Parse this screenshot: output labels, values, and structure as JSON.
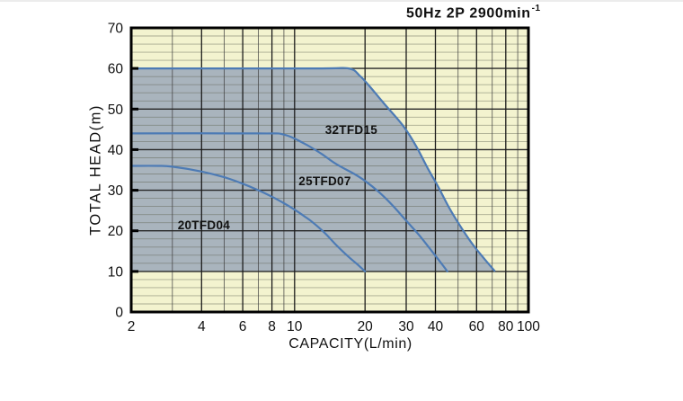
{
  "header": {
    "title_main": "50Hz 2P 2900min",
    "title_sup": "-1"
  },
  "chart_data": {
    "type": "line",
    "title": "50Hz 2P 2900min⁻¹",
    "xlabel": "CAPACITY(L/min)",
    "ylabel": "TOTAL HEAD(m)",
    "x_scale": "log",
    "xlim": [
      2,
      100
    ],
    "ylim": [
      0,
      70
    ],
    "x_ticks": [
      2,
      4,
      6,
      8,
      10,
      20,
      30,
      40,
      60,
      80,
      100
    ],
    "x_minor_gridlines": [
      3,
      5,
      7,
      9,
      50,
      70,
      90
    ],
    "y_ticks": [
      0,
      10,
      20,
      30,
      40,
      50,
      60,
      70
    ],
    "y_minor_step": 2,
    "grid": true,
    "legend_position": "labels-inline-on-chart",
    "series": [
      {
        "name": "32TFD15",
        "label_at": [
          13.5,
          43.9
        ],
        "points": [
          [
            2,
            60
          ],
          [
            12,
            60
          ],
          [
            17,
            60
          ],
          [
            19,
            58.2
          ],
          [
            21,
            55.5
          ],
          [
            24,
            51.5
          ],
          [
            29,
            46
          ],
          [
            33,
            41
          ],
          [
            37,
            35.5
          ],
          [
            41,
            31
          ],
          [
            46,
            25.5
          ],
          [
            52,
            20.5
          ],
          [
            58,
            16.5
          ],
          [
            65,
            13
          ],
          [
            72,
            10
          ]
        ]
      },
      {
        "name": "25TFD07",
        "label_at": [
          10.4,
          31.2
        ],
        "points": [
          [
            2,
            44
          ],
          [
            7,
            44
          ],
          [
            9,
            43.7
          ],
          [
            11,
            41.5
          ],
          [
            13,
            39
          ],
          [
            15,
            36.5
          ],
          [
            18,
            34
          ],
          [
            20,
            32.3
          ],
          [
            23,
            29.5
          ],
          [
            26,
            26.5
          ],
          [
            30,
            22.5
          ],
          [
            34,
            19
          ],
          [
            38,
            15.5
          ],
          [
            42,
            12.3
          ],
          [
            45,
            10
          ]
        ]
      },
      {
        "name": "20TFD04",
        "label_at": [
          3.16,
          20.4
        ],
        "points": [
          [
            2,
            36
          ],
          [
            2.6,
            36
          ],
          [
            3,
            35.8
          ],
          [
            4,
            34.6
          ],
          [
            5,
            33.2
          ],
          [
            6,
            31.6
          ],
          [
            7,
            30
          ],
          [
            8,
            28.4
          ],
          [
            9,
            26.8
          ],
          [
            10,
            25.2
          ],
          [
            11,
            23.6
          ],
          [
            12,
            22
          ],
          [
            13.5,
            19.4
          ],
          [
            15,
            16.6
          ],
          [
            17,
            13.6
          ],
          [
            18.5,
            11.8
          ],
          [
            20,
            10
          ]
        ]
      }
    ],
    "region": {
      "description": "shaded operating range between y=10 and the 32TFD15 curve, from x=2 to x=72"
    },
    "colors": {
      "plot_bg": "#f3f3cf",
      "region_fill": "#a9b4bd",
      "curve": "#4d7bb5",
      "grid_major": "#262626",
      "grid_minor": "#5f6454",
      "border": "#000000",
      "text": "#111111"
    }
  }
}
